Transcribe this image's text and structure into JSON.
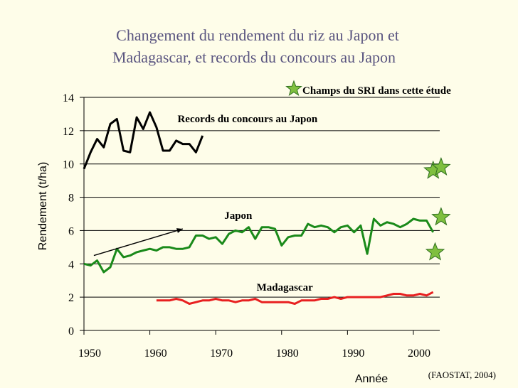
{
  "chart_data": {
    "type": "line",
    "title_lines": [
      "Changement du rendement du riz au Japon et",
      "Madagascar, et records du concours au Japon"
    ],
    "xlabel": "Année",
    "ylabel": "Rendement (t/ha)",
    "xlim": [
      1950,
      2004
    ],
    "ylim": [
      0,
      14
    ],
    "x_ticks": [
      1950,
      1960,
      1970,
      1980,
      1990,
      2000
    ],
    "y_ticks": [
      0,
      2,
      4,
      6,
      8,
      10,
      12,
      14
    ],
    "grid": "horizontal",
    "source": "(FAOSTAT, 2004)",
    "series": [
      {
        "name": "Records du concours au Japon",
        "color": "#000000",
        "x": [
          1950,
          1951,
          1952,
          1953,
          1954,
          1955,
          1956,
          1957,
          1958,
          1959,
          1960,
          1961,
          1962,
          1963,
          1964,
          1965,
          1966,
          1967,
          1968
        ],
        "y": [
          9.7,
          10.7,
          11.5,
          11.0,
          12.4,
          12.7,
          10.8,
          10.7,
          12.8,
          12.1,
          13.1,
          12.2,
          10.8,
          10.8,
          11.4,
          11.2,
          11.2,
          10.7,
          11.7
        ]
      },
      {
        "name": "Japon",
        "color": "#1a8a1a",
        "x": [
          1950,
          1951,
          1952,
          1953,
          1954,
          1955,
          1956,
          1957,
          1958,
          1959,
          1960,
          1961,
          1962,
          1963,
          1964,
          1965,
          1966,
          1967,
          1968,
          1969,
          1970,
          1971,
          1972,
          1973,
          1974,
          1975,
          1976,
          1977,
          1978,
          1979,
          1980,
          1981,
          1982,
          1983,
          1984,
          1985,
          1986,
          1987,
          1988,
          1989,
          1990,
          1991,
          1992,
          1993,
          1994,
          1995,
          1996,
          1997,
          1998,
          1999,
          2000,
          2001,
          2002,
          2003
        ],
        "y": [
          4.0,
          3.9,
          4.2,
          3.5,
          3.8,
          4.9,
          4.4,
          4.5,
          4.7,
          4.8,
          4.9,
          4.8,
          5.0,
          5.0,
          4.9,
          4.9,
          5.0,
          5.7,
          5.7,
          5.5,
          5.6,
          5.2,
          5.8,
          6.0,
          5.9,
          6.2,
          5.5,
          6.2,
          6.2,
          6.1,
          5.1,
          5.6,
          5.7,
          5.7,
          6.4,
          6.2,
          6.3,
          6.2,
          5.9,
          6.2,
          6.3,
          5.9,
          6.3,
          4.6,
          6.7,
          6.3,
          6.5,
          6.4,
          6.2,
          6.4,
          6.7,
          6.6,
          6.6,
          5.9
        ]
      },
      {
        "name": "Madagascar",
        "color": "#e82020",
        "x": [
          1961,
          1962,
          1963,
          1964,
          1965,
          1966,
          1967,
          1968,
          1969,
          1970,
          1971,
          1972,
          1973,
          1974,
          1975,
          1976,
          1977,
          1978,
          1979,
          1980,
          1981,
          1982,
          1983,
          1984,
          1985,
          1986,
          1987,
          1988,
          1989,
          1990,
          1991,
          1992,
          1993,
          1994,
          1995,
          1996,
          1997,
          1998,
          1999,
          2000,
          2001,
          2002,
          2003
        ],
        "y": [
          1.8,
          1.8,
          1.8,
          1.9,
          1.8,
          1.6,
          1.7,
          1.8,
          1.8,
          1.9,
          1.8,
          1.8,
          1.7,
          1.8,
          1.8,
          1.9,
          1.7,
          1.7,
          1.7,
          1.7,
          1.7,
          1.6,
          1.8,
          1.8,
          1.8,
          1.9,
          1.9,
          2.0,
          1.9,
          2.0,
          2.0,
          2.0,
          2.0,
          2.0,
          2.0,
          2.1,
          2.2,
          2.2,
          2.1,
          2.1,
          2.2,
          2.1,
          2.3
        ]
      }
    ],
    "sri_points": {
      "name": "Champs du SRI dans cette étude",
      "color": "#7fbf3f",
      "x": [
        2003,
        2003.3,
        2004.2,
        2004.2
      ],
      "y": [
        9.6,
        4.7,
        6.8,
        9.8
      ]
    },
    "trend_arrow": {
      "from": [
        1951.5,
        4.5
      ],
      "to": [
        1965,
        6.1
      ]
    },
    "annotations": [
      {
        "text": "Records du concours au Japon",
        "x": 1964.2,
        "y": 12.5
      },
      {
        "text": "Japon",
        "x": 1971.3,
        "y": 6.7
      },
      {
        "text": "Madagascar",
        "x": 1976.2,
        "y": 2.4
      }
    ]
  }
}
